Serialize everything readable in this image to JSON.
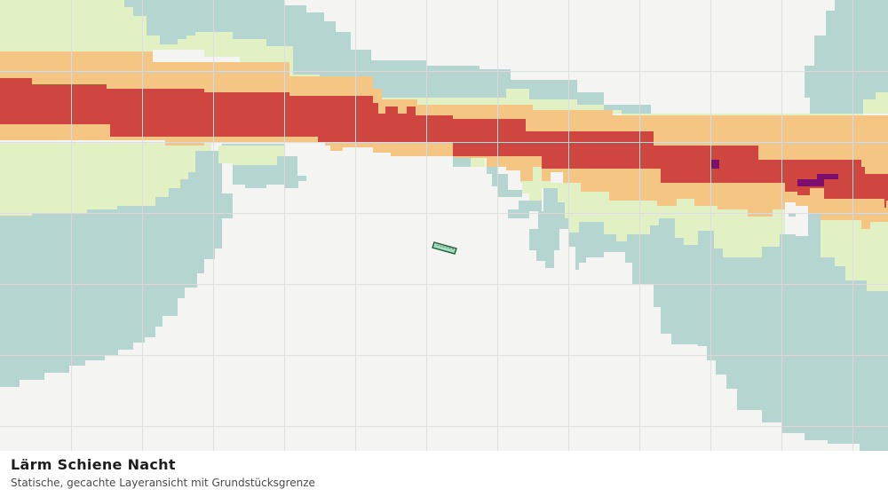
{
  "map": {
    "title": "Lärm Schiene Nacht",
    "subtitle": "Statische, gecachte Layeransicht mit Grundstücksgrenze",
    "colors": {
      "background": "#f4f5f3",
      "grid": "#dcdedb",
      "zone_1": "#b5d5d1",
      "zone_2": "#e2f1c3",
      "zone_3": "#f5c683",
      "zone_4": "#cf4540",
      "zone_5": "#7b0f6b",
      "parcel_fill": "#a8dcc0",
      "parcel_stroke": "#1f5c36"
    }
  }
}
